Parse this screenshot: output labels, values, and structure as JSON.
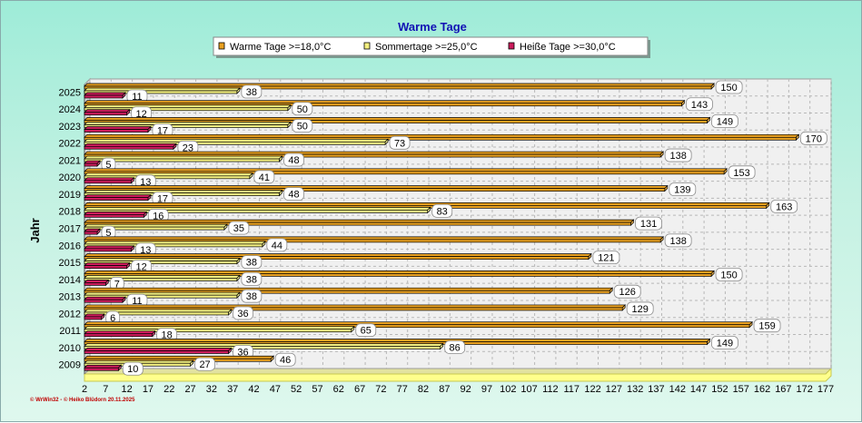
{
  "chart_data": {
    "type": "bar",
    "orientation": "horizontal",
    "title": "Warme Tage",
    "ylabel": "Jahr",
    "xlabel": "",
    "xlim": [
      2,
      177
    ],
    "x_ticks": [
      2,
      7,
      12,
      17,
      22,
      27,
      32,
      37,
      42,
      47,
      52,
      57,
      62,
      67,
      72,
      77,
      82,
      87,
      92,
      97,
      102,
      107,
      112,
      117,
      122,
      127,
      132,
      137,
      142,
      147,
      152,
      157,
      162,
      167,
      172,
      177
    ],
    "grid": true,
    "legend_position": "top",
    "categories": [
      "2025",
      "2024",
      "2023",
      "2022",
      "2021",
      "2020",
      "2019",
      "2018",
      "2017",
      "2016",
      "2015",
      "2014",
      "2013",
      "2012",
      "2011",
      "2010",
      "2009"
    ],
    "series": [
      {
        "name": "Warme Tage >=18,0°C",
        "color": "#e8a020",
        "values": [
          150,
          143,
          149,
          170,
          138,
          153,
          139,
          163,
          131,
          138,
          121,
          150,
          126,
          129,
          159,
          149,
          46
        ]
      },
      {
        "name": "Sommertage >=25,0°C",
        "color": "#f4f080",
        "values": [
          38,
          50,
          50,
          73,
          48,
          41,
          48,
          83,
          35,
          44,
          38,
          38,
          38,
          36,
          65,
          86,
          27
        ]
      },
      {
        "name": "Heiße Tage >=30,0°C",
        "color": "#cc1c5c",
        "values": [
          11,
          12,
          17,
          23,
          5,
          13,
          17,
          16,
          5,
          13,
          12,
          7,
          11,
          6,
          18,
          36,
          10
        ]
      }
    ]
  },
  "footer": {
    "credit_1": "© WrWin32",
    "separator": "-",
    "credit_2": "© Heiko Blüdorn",
    "date": "20.11.2025"
  }
}
